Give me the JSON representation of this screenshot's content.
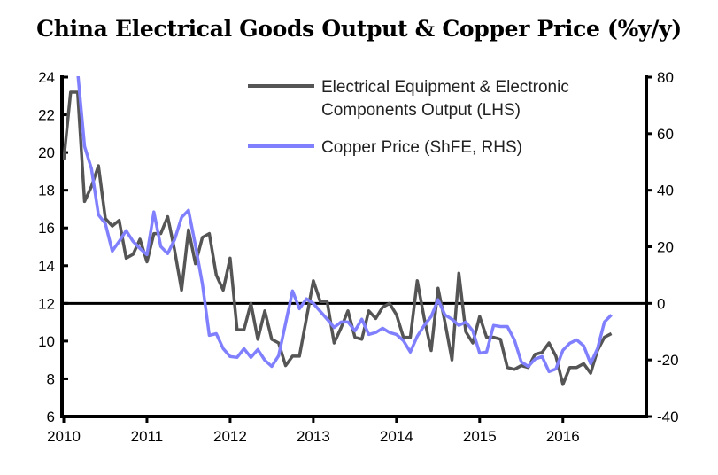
{
  "chart_data": {
    "type": "line",
    "title": "China Electrical Goods Output & Copper Price (%y/y)",
    "xlabel": "",
    "ylabel_left": "",
    "ylabel_right": "",
    "x_ticks": [
      "2010",
      "2011",
      "2012",
      "2013",
      "2014",
      "2015",
      "2016"
    ],
    "y_left_ticks": [
      6,
      8,
      10,
      12,
      14,
      16,
      18,
      20,
      22,
      24
    ],
    "y_right_ticks": [
      -40,
      -20,
      0,
      20,
      40,
      60,
      80
    ],
    "ylim_left": [
      6,
      24
    ],
    "ylim_right": [
      -40,
      80
    ],
    "xlim": [
      "2010-01",
      "2017-01"
    ],
    "grid": false,
    "reference_line": {
      "left": 12,
      "right": 0,
      "color": "#000000"
    },
    "legend_placement": "top-right",
    "legend": [
      "Electrical Equipment & Electronic",
      "Components Output (LHS)",
      "Copper Price (ShFE, RHS)"
    ],
    "series": [
      {
        "name": "Electrical Equipment & Electronic Components Output (LHS)",
        "axis": "left",
        "color": "#555555",
        "start": "2010-01",
        "values": [
          19.6,
          23.2,
          23.2,
          17.4,
          18.2,
          19.3,
          16.5,
          16.1,
          16.4,
          14.4,
          14.6,
          15.4,
          14.2,
          15.7,
          15.7,
          16.6,
          14.8,
          12.7,
          15.9,
          14.1,
          15.5,
          15.7,
          13.5,
          12.7,
          14.4,
          10.6,
          10.6,
          12.0,
          10.1,
          11.6,
          10.1,
          9.9,
          8.7,
          9.2,
          9.2,
          11.2,
          13.2,
          12.1,
          12.1,
          9.9,
          10.7,
          11.6,
          10.2,
          10.1,
          11.6,
          11.2,
          11.8,
          12.0,
          11.4,
          10.2,
          10.2,
          13.2,
          11.2,
          9.5,
          12.8,
          11.0,
          9.0,
          13.6,
          10.5,
          9.9,
          11.3,
          10.2,
          10.2,
          10.1,
          8.6,
          8.5,
          8.7,
          8.6,
          9.3,
          9.4,
          9.9,
          9.2,
          7.7,
          8.6,
          8.6,
          8.8,
          8.3,
          9.5,
          10.2,
          10.4
        ]
      },
      {
        "name": "Copper Price (ShFE, RHS)",
        "axis": "right",
        "color": "#8080ff",
        "start": "2010-03",
        "values": [
          82,
          55.5,
          47.6,
          31.3,
          28.2,
          18.5,
          21.9,
          25.7,
          21.9,
          19.4,
          17.2,
          32.3,
          20.1,
          17.6,
          22.6,
          30.4,
          32.9,
          20.4,
          6.9,
          -11.3,
          -10.7,
          -16.0,
          -18.8,
          -19.1,
          -16.0,
          -19.1,
          -16.3,
          -20.1,
          -22.3,
          -18.5,
          -7.0,
          4.4,
          -1.9,
          1.6,
          0,
          -2.8,
          -5.6,
          -8.5,
          -6.6,
          -6.6,
          -9.7,
          -5.6,
          -11.0,
          -10.3,
          -8.8,
          -10.3,
          -11.0,
          -13.2,
          -17.2,
          -11.6,
          -7.8,
          -4.7,
          1.3,
          -4.1,
          -5.6,
          -7.8,
          -6.6,
          -9.7,
          -17.6,
          -17.2,
          -7.8,
          -8.2,
          -8.2,
          -12.9,
          -20.7,
          -22.3,
          -19.7,
          -18.8,
          -24.1,
          -23.2,
          -16.6,
          -14.1,
          -12.9,
          -15.0,
          -21.3,
          -16.0,
          -6.6,
          -4.1
        ]
      }
    ]
  }
}
